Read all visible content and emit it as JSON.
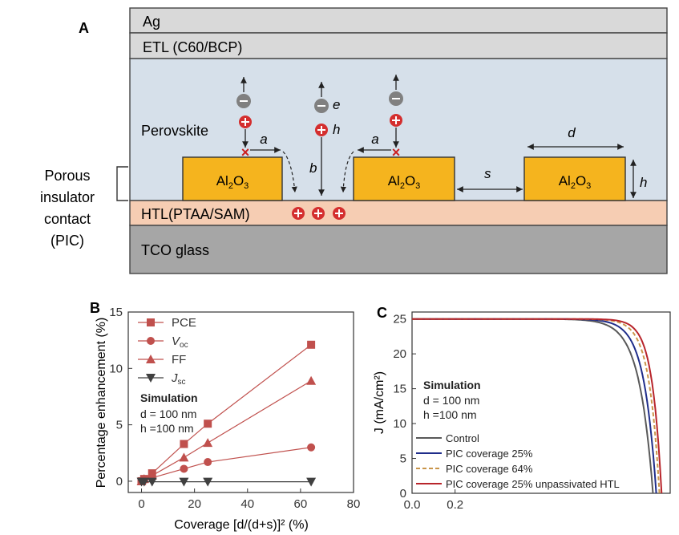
{
  "panelA": {
    "label": "A",
    "layers": {
      "ag": "Ag",
      "etl": "ETL (C60/BCP)",
      "perovskite": "Perovskite",
      "htl": "HTL(PTAA/SAM)",
      "tco": "TCO glass"
    },
    "pic_label": [
      "Porous",
      "insulator",
      "contact",
      "(PIC)"
    ],
    "block_label": "Al2O3",
    "block_label_main": "Al",
    "block_label_sub": "2",
    "block_label_end": "O",
    "block_label_sub2": "3",
    "annotations": {
      "a": "a",
      "b": "b",
      "d": "d",
      "s": "s",
      "h": "h",
      "e": "e"
    },
    "colors": {
      "ag": "#d9d9d9",
      "etl": "#d9d9d9",
      "perovskite": "#d6e0ea",
      "htl": "#f6cdb3",
      "tco": "#a6a6a6",
      "block": "#f5b41e",
      "electron": "#808080",
      "hole": "#d42e2e"
    }
  },
  "panelB": {
    "label": "B",
    "xlabel": "Coverage [d/(d+s)]² (%)",
    "ylabel": "Percentage enhancement (%)",
    "sim_title": "Simulation",
    "sim_lines": [
      "d = 100 nm",
      "h =100 nm"
    ],
    "xticks": [
      "0",
      "20",
      "40",
      "60",
      "80"
    ],
    "yticks": [
      "0",
      "5",
      "10",
      "15"
    ]
  },
  "panelC": {
    "label": "C",
    "ylabel": "J (mA/cm²)",
    "sim_title": "Simulation",
    "sim_lines": [
      "d = 100 nm",
      "h =100 nm"
    ],
    "xticks": [
      "0.0",
      "0.2"
    ],
    "yticks": [
      "0",
      "5",
      "10",
      "15",
      "20",
      "25"
    ],
    "legend": [
      "Control",
      "PIC coverage 25%",
      "PIC coverage 64%",
      "PIC coverage 25% unpassivated HTL"
    ]
  },
  "chart_data": [
    {
      "type": "scatter",
      "title": "",
      "xlabel": "Coverage [d/(d+s)]² (%)",
      "ylabel": "Percentage enhancement (%)",
      "xlim": [
        -5,
        80
      ],
      "ylim": [
        -1,
        15
      ],
      "legend_position": "top-left",
      "series": [
        {
          "name": "PCE",
          "marker": "square",
          "color": "#c0504d",
          "x": [
            0,
            1,
            4,
            16,
            25,
            64
          ],
          "y": [
            0,
            0.2,
            0.7,
            3.3,
            5.1,
            12.1
          ]
        },
        {
          "name": "Voc",
          "marker": "circle",
          "color": "#c0504d",
          "x": [
            0,
            1,
            4,
            16,
            25,
            64
          ],
          "y": [
            0,
            0.1,
            0.3,
            1.1,
            1.7,
            3.0
          ]
        },
        {
          "name": "FF",
          "marker": "triangle-up",
          "color": "#c0504d",
          "x": [
            0,
            1,
            4,
            16,
            25,
            64
          ],
          "y": [
            0,
            0.2,
            0.5,
            2.1,
            3.4,
            8.9
          ]
        },
        {
          "name": "Jsc",
          "marker": "triangle-down",
          "color": "#404040",
          "x": [
            0,
            1,
            4,
            16,
            25,
            64
          ],
          "y": [
            -0.05,
            -0.05,
            -0.05,
            -0.05,
            -0.05,
            -0.05
          ]
        }
      ]
    },
    {
      "type": "line",
      "title": "",
      "xlabel": "",
      "ylabel": "J (mA/cm²)",
      "xlim": [
        0.0,
        1.2
      ],
      "ylim": [
        0,
        26
      ],
      "legend_position": "bottom-left",
      "series": [
        {
          "name": "Control",
          "color": "#595959",
          "dash": "",
          "voc": 1.12,
          "jsc": 25.0,
          "knee": 0.016
        },
        {
          "name": "PIC coverage 25%",
          "color": "#1f2d8a",
          "dash": "",
          "voc": 1.135,
          "jsc": 25.0,
          "knee": 0.014
        },
        {
          "name": "PIC coverage 64%",
          "color": "#c9954a",
          "dash": "5,3",
          "voc": 1.15,
          "jsc": 25.0,
          "knee": 0.012
        },
        {
          "name": "PIC coverage 25% unpassivated HTL",
          "color": "#b8252b",
          "dash": "",
          "voc": 1.16,
          "jsc": 25.0,
          "knee": 0.011
        }
      ]
    }
  ]
}
